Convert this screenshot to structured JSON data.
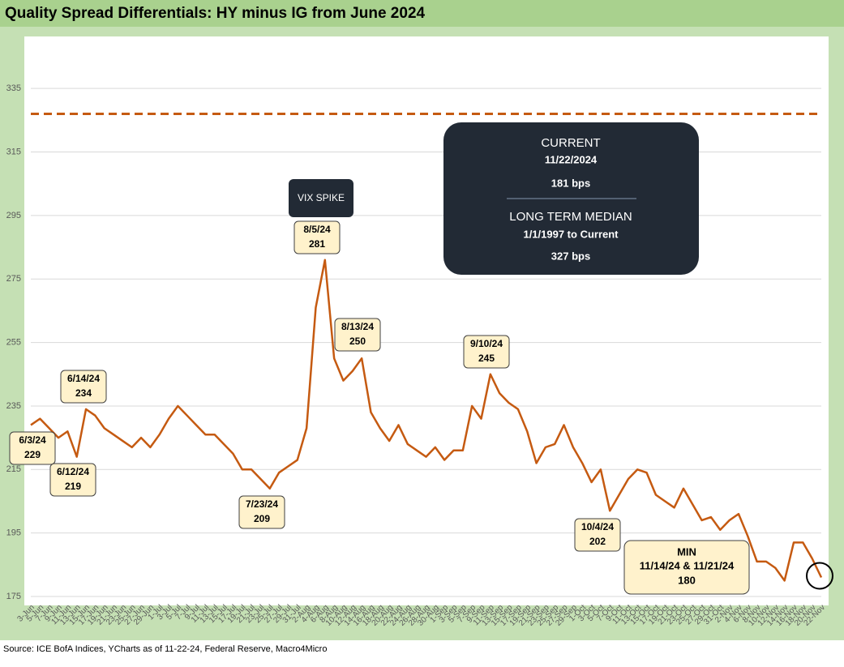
{
  "chart_data": {
    "type": "line",
    "title": "Quality Spread Differentials: HY minus IG from June 2024",
    "source": "Source: ICE BofA Indices, YCharts as of 11-22-24, Federal Reserve, Macro4Micro",
    "categories": [
      "3-Jun",
      "5-Jun",
      "7-Jun",
      "9-Jun",
      "11-Jun",
      "13-Jun",
      "15-Jun",
      "17-Jun",
      "19-Jun",
      "21-Jun",
      "23-Jun",
      "25-Jun",
      "27-Jun",
      "29-Jun",
      "1-Jul",
      "3-Jul",
      "5-Jul",
      "7-Jul",
      "9-Jul",
      "11-Jul",
      "13-Jul",
      "15-Jul",
      "17-Jul",
      "19-Jul",
      "21-Jul",
      "23-Jul",
      "25-Jul",
      "27-Jul",
      "29-Jul",
      "31-Jul",
      "2-Aug",
      "4-Aug",
      "6-Aug",
      "8-Aug",
      "10-Aug",
      "12-Aug",
      "14-Aug",
      "16-Aug",
      "18-Aug",
      "20-Aug",
      "22-Aug",
      "24-Aug",
      "26-Aug",
      "28-Aug",
      "30-Aug",
      "1-Sep",
      "3-Sep",
      "5-Sep",
      "7-Sep",
      "9-Sep",
      "11-Sep",
      "13-Sep",
      "15-Sep",
      "17-Sep",
      "19-Sep",
      "21-Sep",
      "23-Sep",
      "25-Sep",
      "27-Sep",
      "29-Sep",
      "1-Oct",
      "3-Oct",
      "5-Oct",
      "7-Oct",
      "9-Oct",
      "11-Oct",
      "13-Oct",
      "15-Oct",
      "17-Oct",
      "19-Oct",
      "21-Oct",
      "23-Oct",
      "25-Oct",
      "27-Oct",
      "29-Oct",
      "31-Oct",
      "2-Nov",
      "4-Nov",
      "6-Nov",
      "8-Nov",
      "10-Nov",
      "12-Nov",
      "14-Nov",
      "16-Nov",
      "18-Nov",
      "20-Nov",
      "22-Nov"
    ],
    "series": [
      {
        "name": "HY minus IG",
        "color": "#c55a11",
        "values": [
          229,
          231,
          228,
          225,
          227,
          219,
          234,
          232,
          228,
          226,
          224,
          222,
          225,
          222,
          226,
          231,
          235,
          232,
          229,
          226,
          226,
          223,
          220,
          215,
          215,
          212,
          209,
          214,
          216,
          218,
          228,
          266,
          281,
          250,
          243,
          246,
          250,
          233,
          228,
          224,
          229,
          223,
          221,
          219,
          222,
          218,
          221,
          221,
          235,
          231,
          245,
          239,
          236,
          234,
          227,
          217,
          222,
          223,
          229,
          222,
          217,
          211,
          215,
          202,
          207,
          212,
          215,
          214,
          207,
          205,
          203,
          209,
          204,
          199,
          200,
          196,
          199,
          201,
          194,
          186,
          186,
          184,
          180,
          192,
          192,
          187,
          181
        ]
      }
    ],
    "reference_line": {
      "value": 327,
      "color": "#c55a11"
    },
    "ylim": [
      175,
      345
    ],
    "yticks": [
      175,
      195,
      215,
      235,
      255,
      275,
      295,
      315,
      335
    ],
    "grid": true,
    "info_box": {
      "current_title": "CURRENT",
      "current_date": "11/22/2024",
      "current_value": "181 bps",
      "median_title": "LONG TERM MEDIAN",
      "median_period": "1/1/1997 to Current",
      "median_value": "327 bps"
    },
    "spike_label": "VIX SPIKE",
    "callouts": [
      {
        "date": "6/3/24",
        "value": 229
      },
      {
        "date": "6/12/24",
        "value": 219
      },
      {
        "date": "6/14/24",
        "value": 234
      },
      {
        "date": "7/23/24",
        "value": 209
      },
      {
        "date": "8/5/24",
        "value": 281
      },
      {
        "date": "8/13/24",
        "value": 250
      },
      {
        "date": "9/10/24",
        "value": 245
      },
      {
        "date": "10/4/24",
        "value": 202
      }
    ],
    "min_callout": {
      "title": "MIN",
      "date": "11/14/24 & 11/21/24",
      "value": 180
    }
  }
}
